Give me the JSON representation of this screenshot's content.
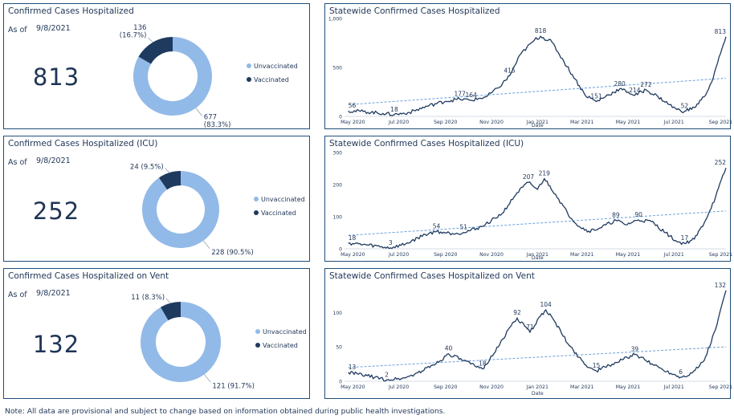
{
  "summary_panels": [
    {
      "title": "Confirmed Cases Hospitalized",
      "as_of_label": "As of",
      "as_of_date": "9/8/2021",
      "total": "813",
      "vaccinated_label": "136\n(16.7%)",
      "unvaccinated_label": "677\n(83.3%)",
      "legend_unvaccinated": "Unvaccinated",
      "legend_vaccinated": "Vaccinated"
    },
    {
      "title": "Confirmed Cases Hospitalized (ICU)",
      "as_of_label": "As of",
      "as_of_date": "9/8/2021",
      "total": "252",
      "vaccinated_label": "24 (9.5%)",
      "unvaccinated_label": "228 (90.5%)",
      "legend_unvaccinated": "Unvaccinated",
      "legend_vaccinated": "Vaccinated"
    },
    {
      "title": "Confirmed Cases Hospitalized on Vent",
      "as_of_label": "As of",
      "as_of_date": "9/8/2021",
      "total": "132",
      "vaccinated_label": "11 (8.3%)",
      "unvaccinated_label": "121 (91.7%)",
      "legend_unvaccinated": "Unvaccinated",
      "legend_vaccinated": "Vaccinated"
    }
  ],
  "colors": {
    "unvaccinated": "#92bae8",
    "vaccinated": "#1f3a5f",
    "line": "#1f3a5f",
    "trend": "#6c9fd8",
    "text": "#1f3556",
    "border": "#1f4e79"
  },
  "chart_data": [
    {
      "type": "pie",
      "title": "Confirmed Cases Hospitalized",
      "categories": [
        "Unvaccinated",
        "Vaccinated"
      ],
      "values": [
        677,
        136
      ],
      "percent": [
        83.3,
        16.7
      ]
    },
    {
      "type": "pie",
      "title": "Confirmed Cases Hospitalized (ICU)",
      "categories": [
        "Unvaccinated",
        "Vaccinated"
      ],
      "values": [
        228,
        24
      ],
      "percent": [
        90.5,
        9.5
      ]
    },
    {
      "type": "pie",
      "title": "Confirmed Cases Hospitalized on Vent",
      "categories": [
        "Unvaccinated",
        "Vaccinated"
      ],
      "values": [
        121,
        11
      ],
      "percent": [
        91.7,
        8.3
      ]
    },
    {
      "type": "line",
      "title": "Statewide Confirmed Cases Hospitalized",
      "xlabel": "Date",
      "ylabel": "",
      "ylim": [
        0,
        1000
      ],
      "yticks": [
        0,
        500,
        1000
      ],
      "ytick_labels": [
        "0",
        "500",
        "1,000"
      ],
      "xticks": [
        "2020-05-01",
        "2020-07-01",
        "2020-09-01",
        "2020-11-01",
        "2021-01-01",
        "2021-03-01",
        "2021-05-01",
        "2021-07-01",
        "2021-09-01"
      ],
      "xtick_labels": [
        "May 2020",
        "Jul 2020",
        "Sep 2020",
        "Nov 2020",
        "Jan 2021",
        "Mar 2021",
        "May 2021",
        "Jul 2021",
        "Sep 2021"
      ],
      "xrange": [
        "2020-04-20",
        "2021-09-08"
      ],
      "trend": [
        [
          "2020-04-25",
          120
        ],
        [
          "2021-09-08",
          390
        ]
      ],
      "series": [
        {
          "values": [
            [
              "2020-04-25",
              56
            ],
            [
              "2020-05-15",
              50
            ],
            [
              "2020-06-10",
              30
            ],
            [
              "2020-06-25",
              18
            ],
            [
              "2020-07-15",
              40
            ],
            [
              "2020-08-10",
              110
            ],
            [
              "2020-09-01",
              155
            ],
            [
              "2020-09-20",
              177
            ],
            [
              "2020-10-05",
              164
            ],
            [
              "2020-10-25",
              200
            ],
            [
              "2020-11-10",
              290
            ],
            [
              "2020-11-25",
              415
            ],
            [
              "2020-12-10",
              640
            ],
            [
              "2020-12-28",
              780
            ],
            [
              "2021-01-05",
              818
            ],
            [
              "2021-01-20",
              760
            ],
            [
              "2021-02-05",
              560
            ],
            [
              "2021-02-20",
              380
            ],
            [
              "2021-03-05",
              220
            ],
            [
              "2021-03-20",
              151
            ],
            [
              "2021-04-05",
              220
            ],
            [
              "2021-04-20",
              280
            ],
            [
              "2021-05-01",
              250
            ],
            [
              "2021-05-10",
              214
            ],
            [
              "2021-05-25",
              272
            ],
            [
              "2021-06-10",
              200
            ],
            [
              "2021-06-25",
              120
            ],
            [
              "2021-07-05",
              70
            ],
            [
              "2021-07-15",
              52
            ],
            [
              "2021-07-28",
              90
            ],
            [
              "2021-08-10",
              200
            ],
            [
              "2021-08-20",
              350
            ],
            [
              "2021-08-28",
              550
            ],
            [
              "2021-09-08",
              813
            ]
          ]
        }
      ],
      "annotations": [
        {
          "x": "2020-04-25",
          "y": 56,
          "text": "56"
        },
        {
          "x": "2020-06-25",
          "y": 18,
          "text": "18"
        },
        {
          "x": "2020-09-20",
          "y": 177,
          "text": "177"
        },
        {
          "x": "2020-10-05",
          "y": 164,
          "text": "164"
        },
        {
          "x": "2020-11-25",
          "y": 415,
          "text": "415"
        },
        {
          "x": "2021-01-05",
          "y": 818,
          "text": "818"
        },
        {
          "x": "2021-03-20",
          "y": 151,
          "text": "151"
        },
        {
          "x": "2021-04-20",
          "y": 280,
          "text": "280"
        },
        {
          "x": "2021-05-10",
          "y": 214,
          "text": "214"
        },
        {
          "x": "2021-05-25",
          "y": 272,
          "text": "272"
        },
        {
          "x": "2021-07-15",
          "y": 52,
          "text": "52"
        },
        {
          "x": "2021-09-08",
          "y": 813,
          "text": "813"
        }
      ]
    },
    {
      "type": "line",
      "title": "Statewide Confirmed Cases Hospitalized (ICU)",
      "xlabel": "Date",
      "ylabel": "",
      "ylim": [
        0,
        300
      ],
      "yticks": [
        0,
        100,
        200,
        300
      ],
      "ytick_labels": [
        "0",
        "100",
        "200",
        "300"
      ],
      "xticks": [
        "2020-05-01",
        "2020-07-01",
        "2020-09-01",
        "2020-11-01",
        "2021-01-01",
        "2021-03-01",
        "2021-05-01",
        "2021-07-01",
        "2021-09-01"
      ],
      "xtick_labels": [
        "May 2020",
        "Jul 2020",
        "Sep 2020",
        "Nov 2020",
        "Jan 2021",
        "Mar 2021",
        "May 2021",
        "Jul 2021",
        "Sep 2021"
      ],
      "xrange": [
        "2020-04-20",
        "2021-09-08"
      ],
      "trend": [
        [
          "2020-04-25",
          42
        ],
        [
          "2021-09-08",
          118
        ]
      ],
      "series": [
        {
          "values": [
            [
              "2020-04-25",
              18
            ],
            [
              "2020-05-20",
              12
            ],
            [
              "2020-06-20",
              3
            ],
            [
              "2020-07-10",
              15
            ],
            [
              "2020-08-05",
              45
            ],
            [
              "2020-08-20",
              54
            ],
            [
              "2020-09-10",
              48
            ],
            [
              "2020-09-25",
              51
            ],
            [
              "2020-10-20",
              70
            ],
            [
              "2020-11-15",
              110
            ],
            [
              "2020-12-05",
              175
            ],
            [
              "2020-12-20",
              207
            ],
            [
              "2021-01-01",
              185
            ],
            [
              "2021-01-10",
              219
            ],
            [
              "2021-01-25",
              170
            ],
            [
              "2021-02-10",
              110
            ],
            [
              "2021-02-25",
              70
            ],
            [
              "2021-03-10",
              55
            ],
            [
              "2021-03-25",
              65
            ],
            [
              "2021-04-15",
              89
            ],
            [
              "2021-04-28",
              75
            ],
            [
              "2021-05-15",
              90
            ],
            [
              "2021-06-01",
              85
            ],
            [
              "2021-06-20",
              50
            ],
            [
              "2021-07-05",
              22
            ],
            [
              "2021-07-15",
              17
            ],
            [
              "2021-07-28",
              30
            ],
            [
              "2021-08-10",
              80
            ],
            [
              "2021-08-25",
              160
            ],
            [
              "2021-09-08",
              252
            ]
          ]
        }
      ],
      "annotations": [
        {
          "x": "2020-04-25",
          "y": 18,
          "text": "18"
        },
        {
          "x": "2020-06-20",
          "y": 3,
          "text": "3"
        },
        {
          "x": "2020-08-20",
          "y": 54,
          "text": "54"
        },
        {
          "x": "2020-09-25",
          "y": 51,
          "text": "51"
        },
        {
          "x": "2020-12-20",
          "y": 207,
          "text": "207"
        },
        {
          "x": "2021-01-10",
          "y": 219,
          "text": "219"
        },
        {
          "x": "2021-04-15",
          "y": 89,
          "text": "89"
        },
        {
          "x": "2021-05-15",
          "y": 90,
          "text": "90"
        },
        {
          "x": "2021-07-15",
          "y": 17,
          "text": "17"
        },
        {
          "x": "2021-09-08",
          "y": 252,
          "text": "252"
        }
      ]
    },
    {
      "type": "line",
      "title": "Statewide Confirmed Cases Hospitalized on Vent",
      "xlabel": "Date",
      "ylabel": "",
      "ylim": [
        0,
        140
      ],
      "yticks": [
        0,
        50,
        100
      ],
      "ytick_labels": [
        "0",
        "50",
        "100"
      ],
      "xticks": [
        "2020-05-01",
        "2020-07-01",
        "2020-09-01",
        "2020-11-01",
        "2021-01-01",
        "2021-03-01",
        "2021-05-01",
        "2021-07-01",
        "2021-09-01"
      ],
      "xtick_labels": [
        "May 2020",
        "Jul 2020",
        "Sep 2020",
        "Nov 2020",
        "Jan 2021",
        "Mar 2021",
        "May 2021",
        "Jul 2021",
        "Sep 2021"
      ],
      "xrange": [
        "2020-04-20",
        "2021-09-08"
      ],
      "trend": [
        [
          "2020-04-25",
          20
        ],
        [
          "2021-09-08",
          50
        ]
      ],
      "series": [
        {
          "values": [
            [
              "2020-04-25",
              13
            ],
            [
              "2020-05-20",
              8
            ],
            [
              "2020-06-15",
              2
            ],
            [
              "2020-07-10",
              5
            ],
            [
              "2020-08-01",
              15
            ],
            [
              "2020-08-25",
              30
            ],
            [
              "2020-09-05",
              40
            ],
            [
              "2020-09-25",
              30
            ],
            [
              "2020-10-10",
              22
            ],
            [
              "2020-10-20",
              18
            ],
            [
              "2020-11-10",
              50
            ],
            [
              "2020-11-25",
              78
            ],
            [
              "2020-12-05",
              92
            ],
            [
              "2020-12-15",
              80
            ],
            [
              "2020-12-22",
              71
            ],
            [
              "2021-01-05",
              95
            ],
            [
              "2021-01-12",
              104
            ],
            [
              "2021-01-25",
              85
            ],
            [
              "2021-02-10",
              55
            ],
            [
              "2021-02-25",
              35
            ],
            [
              "2021-03-10",
              20
            ],
            [
              "2021-03-20",
              15
            ],
            [
              "2021-04-10",
              25
            ],
            [
              "2021-04-25",
              32
            ],
            [
              "2021-05-10",
              39
            ],
            [
              "2021-05-25",
              30
            ],
            [
              "2021-06-15",
              18
            ],
            [
              "2021-07-01",
              10
            ],
            [
              "2021-07-10",
              6
            ],
            [
              "2021-07-25",
              12
            ],
            [
              "2021-08-10",
              30
            ],
            [
              "2021-08-25",
              75
            ],
            [
              "2021-09-08",
              132
            ]
          ]
        }
      ],
      "annotations": [
        {
          "x": "2020-04-25",
          "y": 13,
          "text": "13"
        },
        {
          "x": "2020-06-15",
          "y": 2,
          "text": "2"
        },
        {
          "x": "2020-09-05",
          "y": 40,
          "text": "40"
        },
        {
          "x": "2020-10-20",
          "y": 18,
          "text": "18"
        },
        {
          "x": "2020-12-05",
          "y": 92,
          "text": "92"
        },
        {
          "x": "2020-12-22",
          "y": 71,
          "text": "71"
        },
        {
          "x": "2021-01-12",
          "y": 104,
          "text": "104"
        },
        {
          "x": "2021-03-20",
          "y": 15,
          "text": "15"
        },
        {
          "x": "2021-05-10",
          "y": 39,
          "text": "39"
        },
        {
          "x": "2021-07-10",
          "y": 6,
          "text": "6"
        },
        {
          "x": "2021-09-08",
          "y": 132,
          "text": "132"
        }
      ]
    }
  ],
  "footer_note": "Note: All data are provisional and subject to change based on information obtained during public health investigations."
}
